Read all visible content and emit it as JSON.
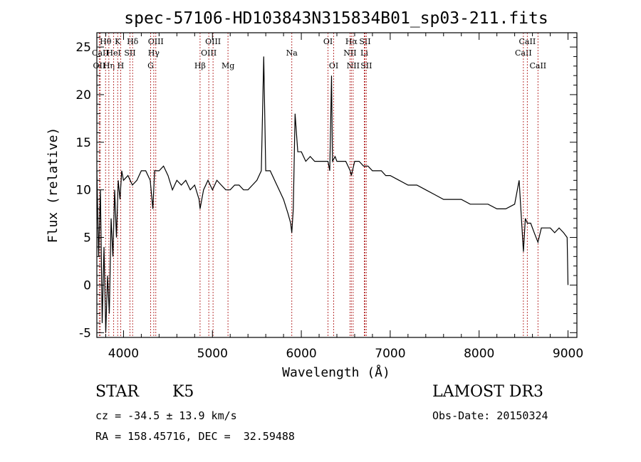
{
  "chart_data": {
    "type": "line",
    "title": "spec-57106-HD103843N315834B01_sp03-211.fits",
    "xlabel": "Wavelength (Å)",
    "ylabel": "Flux (relative)",
    "xlim": [
      3700,
      9100
    ],
    "ylim": [
      -5.5,
      26.5
    ],
    "xticks": [
      4000,
      5000,
      6000,
      7000,
      8000,
      9000
    ],
    "yticks": [
      -5,
      0,
      5,
      10,
      15,
      20,
      25
    ],
    "grid": false,
    "series": [
      {
        "x": [
          3700,
          3720,
          3740,
          3760,
          3780,
          3800,
          3820,
          3840,
          3860,
          3880,
          3900,
          3920,
          3940,
          3960,
          3980,
          4000,
          4050,
          4100,
          4150,
          4200,
          4250,
          4300,
          4330,
          4350,
          4400,
          4450,
          4500,
          4550,
          4600,
          4650,
          4700,
          4750,
          4800,
          4850,
          4861,
          4900,
          4950,
          5000,
          5050,
          5100,
          5150,
          5200,
          5250,
          5300,
          5350,
          5400,
          5450,
          5500,
          5550,
          5577,
          5600,
          5650,
          5700,
          5750,
          5800,
          5850,
          5880,
          5893,
          5910,
          5930,
          5960,
          6000,
          6050,
          6100,
          6150,
          6200,
          6250,
          6300,
          6320,
          6340,
          6350,
          6380,
          6400,
          6450,
          6500,
          6550,
          6563,
          6600,
          6650,
          6700,
          6750,
          6800,
          6850,
          6900,
          6950,
          7000,
          7100,
          7200,
          7300,
          7400,
          7500,
          7600,
          7700,
          7800,
          7900,
          8000,
          8100,
          8200,
          8300,
          8400,
          8450,
          8498,
          8520,
          8542,
          8580,
          8620,
          8662,
          8700,
          8750,
          8800,
          8850,
          8900,
          8950,
          8990,
          9000
        ],
        "values": [
          12,
          3,
          10,
          -4,
          4,
          -5,
          1,
          -3,
          7,
          3,
          10,
          5,
          11,
          9,
          12,
          11,
          11.5,
          10.5,
          11,
          12,
          12,
          11,
          8,
          12,
          12,
          12.5,
          11.5,
          10,
          11,
          10.5,
          11,
          10,
          10.5,
          9,
          8,
          10,
          11,
          10,
          11,
          10.5,
          10,
          10,
          10.5,
          10.5,
          10,
          10,
          10.5,
          11,
          12,
          24,
          12,
          12,
          11,
          10,
          9,
          7.5,
          6.5,
          5.5,
          8,
          18,
          14,
          14,
          13,
          13.5,
          13,
          13,
          13,
          13,
          12,
          22,
          13,
          13.5,
          13,
          13,
          13,
          12,
          11.5,
          13,
          13,
          12.5,
          12.5,
          12,
          12,
          12,
          11.5,
          11.5,
          11,
          10.5,
          10.5,
          10,
          9.5,
          9,
          9,
          9,
          8.5,
          8.5,
          8.5,
          8,
          8,
          8.5,
          11,
          3.5,
          7,
          6.5,
          6.5,
          5.5,
          4.5,
          6,
          6,
          6,
          5.5,
          6,
          5.5,
          5,
          0
        ]
      }
    ],
    "lines": [
      {
        "label": "Hθ",
        "x": 3798,
        "row": 0
      },
      {
        "label": "OII",
        "x": 3727,
        "row": 2
      },
      {
        "label": "CaII",
        "x": 3739,
        "row": 1
      },
      {
        "label": "Hη",
        "x": 3835,
        "row": 2
      },
      {
        "label": "HeI",
        "x": 3889,
        "row": 1
      },
      {
        "label": "K",
        "x": 3934,
        "row": 0
      },
      {
        "label": "H",
        "x": 3968,
        "row": 2
      },
      {
        "label": "SII",
        "x": 4072,
        "row": 1
      },
      {
        "label": "Hδ",
        "x": 4102,
        "row": 0
      },
      {
        "label": "G",
        "x": 4305,
        "row": 2
      },
      {
        "label": "OIII",
        "x": 4363,
        "row": 0
      },
      {
        "label": "Hγ",
        "x": 4340,
        "row": 1
      },
      {
        "label": "Hβ",
        "x": 4861,
        "row": 2
      },
      {
        "label": "OIII",
        "x": 4959,
        "row": 1
      },
      {
        "label": "OIII",
        "x": 5007,
        "row": 0
      },
      {
        "label": "Mg",
        "x": 5175,
        "row": 2
      },
      {
        "label": "Na",
        "x": 5893,
        "row": 1
      },
      {
        "label": "OI",
        "x": 6300,
        "row": 0
      },
      {
        "label": "OI",
        "x": 6364,
        "row": 2
      },
      {
        "label": "Hα",
        "x": 6563,
        "row": 0
      },
      {
        "label": "NII",
        "x": 6548,
        "row": 1
      },
      {
        "label": "NII",
        "x": 6583,
        "row": 2
      },
      {
        "label": "SII",
        "x": 6716,
        "row": 0
      },
      {
        "label": "Li",
        "x": 6708,
        "row": 1
      },
      {
        "label": "SII",
        "x": 6731,
        "row": 2
      },
      {
        "label": "CaII",
        "x": 8498,
        "row": 1
      },
      {
        "label": "CaII",
        "x": 8542,
        "row": 0
      },
      {
        "label": "CaII",
        "x": 8662,
        "row": 2
      }
    ]
  },
  "footer": {
    "object_class": "STAR",
    "subclass": "K5",
    "survey": "LAMOST DR3",
    "cz": "cz = -34.5 ± 13.9 km/s",
    "obs_date": "Obs-Date: 20150324",
    "coords": "RA = 158.45716, DEC =  32.59488"
  },
  "colors": {
    "spectrum": "#000000",
    "line_markers": "#b22222"
  }
}
